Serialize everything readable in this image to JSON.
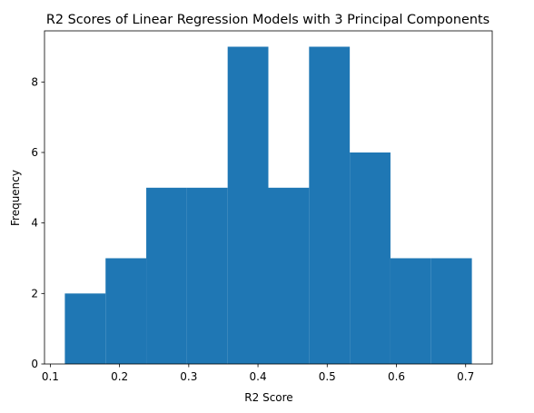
{
  "chart_data": {
    "type": "bar",
    "title": "R2 Scores of Linear Regression Models with 3 Principal Components",
    "xlabel": "R2 Score",
    "ylabel": "Frequency",
    "bin_edges": [
      0.121,
      0.1798,
      0.2386,
      0.2974,
      0.3562,
      0.415,
      0.4738,
      0.5326,
      0.5914,
      0.6502,
      0.709
    ],
    "values": [
      2,
      3,
      5,
      5,
      9,
      5,
      9,
      6,
      3,
      3
    ],
    "xlim": [
      0.0916,
      0.7384
    ],
    "ylim": [
      0,
      9.45
    ],
    "xticks": [
      0.1,
      0.2,
      0.3,
      0.4,
      0.5,
      0.6,
      0.7
    ],
    "yticks": [
      0,
      2,
      4,
      6,
      8
    ],
    "bar_color": "#1f77b4",
    "grid": false,
    "legend": false
  }
}
